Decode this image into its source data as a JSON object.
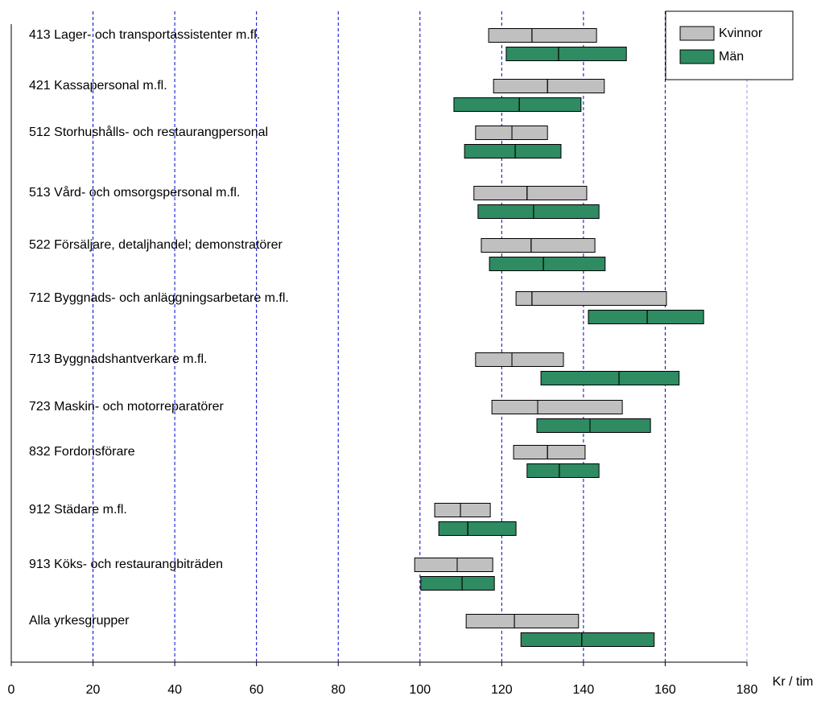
{
  "chart_data": {
    "type": "range-bar",
    "categories": [
      "413 Lager- och transportassistenter m.fl.",
      "421 Kassapersonal m.fl.",
      "512 Storhushålls- och restaurangpersonal",
      "513 Vård- och omsorgspersonal m.fl.",
      "522 Försäljare, detaljhandel; demonstratörer",
      "712 Byggnads- och anläggningsarbetare m.fl.",
      "713 Byggnadshantverkare m.fl.",
      "723 Maskin- och motorreparatörer",
      "832 Fordonsförare",
      "912 Städare m.fl.",
      "913 Köks- och restaurangbiträden",
      "Alla yrkesgrupper"
    ],
    "series": [
      {
        "name": "Kvinnor",
        "color": "#c0c0c0",
        "low": [
          116.8,
          118.0,
          113.6,
          113.2,
          115.0,
          123.5,
          113.6,
          117.6,
          122.9,
          103.6,
          98.7,
          111.3
        ],
        "median": [
          127.4,
          131.2,
          122.5,
          126.2,
          127.2,
          127.4,
          122.5,
          128.8,
          131.2,
          109.9,
          109.1,
          123.1
        ],
        "high": [
          143.2,
          145.1,
          131.2,
          140.8,
          142.8,
          160.3,
          135.1,
          149.5,
          140.4,
          117.2,
          117.8,
          138.8
        ]
      },
      {
        "name": "Män",
        "color": "#2e8b62",
        "low": [
          121.1,
          108.3,
          110.9,
          114.2,
          117.0,
          141.2,
          129.6,
          128.6,
          126.2,
          104.6,
          100.2,
          124.7
        ],
        "median": [
          133.9,
          124.3,
          123.3,
          127.8,
          130.2,
          155.6,
          148.7,
          141.6,
          134.1,
          111.7,
          110.3,
          139.6
        ],
        "high": [
          150.5,
          139.4,
          134.5,
          143.8,
          145.3,
          169.4,
          163.4,
          156.4,
          143.8,
          123.5,
          118.2,
          157.3
        ]
      }
    ],
    "x_label": "Kr / tim",
    "xlim": [
      0,
      180
    ],
    "xticks": [
      0,
      20,
      40,
      60,
      80,
      100,
      120,
      140,
      160,
      180
    ],
    "grid": true,
    "legend": "top-right"
  }
}
